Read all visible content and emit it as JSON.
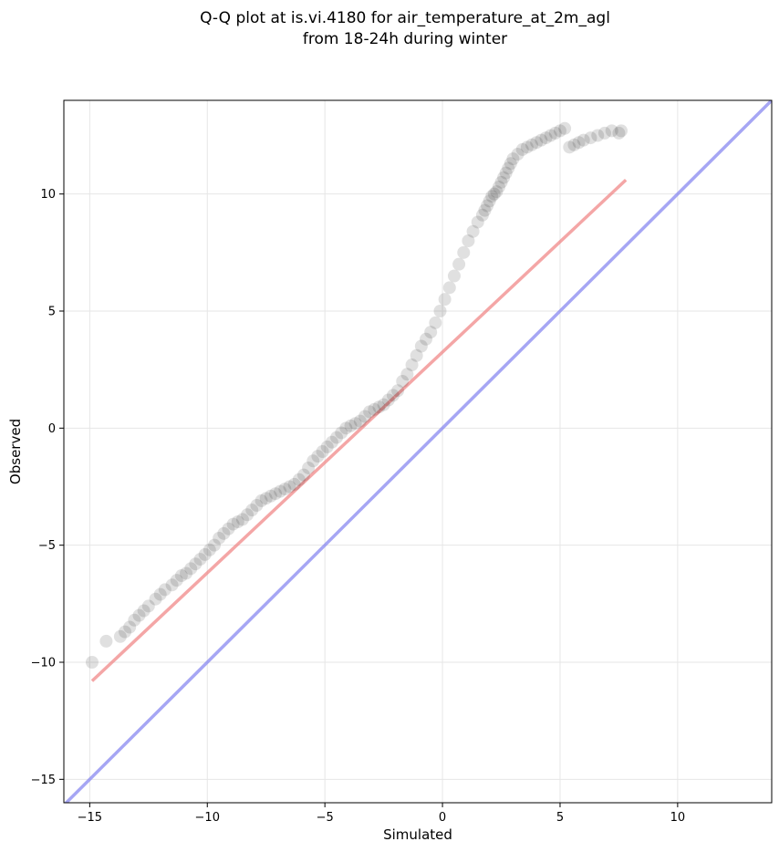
{
  "chart_data": {
    "type": "scatter",
    "title_line1": "Q-Q plot at is.vi.4180 for air_temperature_at_2m_agl",
    "title_line2": "from 18-24h during winter",
    "xlabel": "Simulated",
    "ylabel": "Observed",
    "xlim": [
      -16.1,
      14.0
    ],
    "ylim": [
      -16.0,
      14.0
    ],
    "xticks": [
      -15,
      -10,
      -5,
      0,
      5,
      10
    ],
    "yticks": [
      -15,
      -10,
      -5,
      0,
      5,
      10
    ],
    "xtick_labels": [
      "−15",
      "−10",
      "−5",
      "0",
      "5",
      "10"
    ],
    "ytick_labels": [
      "−15",
      "−10",
      "−5",
      "0",
      "5",
      "10"
    ],
    "grid": true,
    "colors": {
      "points": "#000000",
      "fit_line": "#f08080",
      "identity_line": "#8080f0",
      "grid": "#e6e6e6"
    },
    "fit_line": {
      "x": [
        -14.9,
        7.8
      ],
      "y": [
        -10.8,
        10.6
      ]
    },
    "identity_line": {
      "x": [
        -16.1,
        14.0
      ],
      "y": [
        -16.1,
        14.0
      ]
    },
    "points": {
      "x": [
        -14.9,
        -14.3,
        -13.7,
        -13.5,
        -13.3,
        -13.1,
        -12.9,
        -12.7,
        -12.5,
        -12.2,
        -12.0,
        -11.8,
        -11.5,
        -11.3,
        -11.1,
        -10.9,
        -10.7,
        -10.5,
        -10.3,
        -10.1,
        -9.9,
        -9.7,
        -9.5,
        -9.3,
        -9.1,
        -8.9,
        -8.7,
        -8.5,
        -8.3,
        -8.1,
        -7.9,
        -7.7,
        -7.5,
        -7.3,
        -7.1,
        -6.9,
        -6.7,
        -6.5,
        -6.3,
        -6.1,
        -5.9,
        -5.7,
        -5.5,
        -5.3,
        -5.1,
        -4.9,
        -4.7,
        -4.5,
        -4.3,
        -4.1,
        -3.9,
        -3.7,
        -3.5,
        -3.3,
        -3.1,
        -2.9,
        -2.7,
        -2.5,
        -2.3,
        -2.1,
        -1.9,
        -1.7,
        -1.5,
        -1.3,
        -1.1,
        -0.9,
        -0.7,
        -0.5,
        -0.3,
        -0.1,
        0.1,
        0.3,
        0.5,
        0.7,
        0.9,
        1.1,
        1.3,
        1.5,
        1.7,
        1.8,
        1.9,
        2.0,
        2.1,
        2.2,
        2.3,
        2.4,
        2.5,
        2.6,
        2.7,
        2.8,
        2.9,
        3.0,
        3.2,
        3.4,
        3.6,
        3.8,
        4.0,
        4.2,
        4.4,
        4.6,
        4.8,
        5.0,
        5.2,
        5.4,
        5.6,
        5.8,
        6.0,
        6.3,
        6.6,
        6.9,
        7.2,
        7.5,
        7.6
      ],
      "y": [
        -10.0,
        -9.1,
        -8.9,
        -8.7,
        -8.5,
        -8.2,
        -8.0,
        -7.8,
        -7.6,
        -7.3,
        -7.1,
        -6.9,
        -6.7,
        -6.5,
        -6.3,
        -6.2,
        -6.0,
        -5.8,
        -5.6,
        -5.4,
        -5.2,
        -5.0,
        -4.7,
        -4.5,
        -4.3,
        -4.1,
        -4.0,
        -3.9,
        -3.7,
        -3.5,
        -3.3,
        -3.1,
        -3.0,
        -2.9,
        -2.8,
        -2.7,
        -2.6,
        -2.5,
        -2.4,
        -2.2,
        -2.0,
        -1.7,
        -1.4,
        -1.2,
        -1.0,
        -0.8,
        -0.6,
        -0.4,
        -0.2,
        0.0,
        0.1,
        0.2,
        0.3,
        0.5,
        0.7,
        0.8,
        0.9,
        1.0,
        1.2,
        1.4,
        1.6,
        2.0,
        2.3,
        2.7,
        3.1,
        3.5,
        3.8,
        4.1,
        4.5,
        5.0,
        5.5,
        6.0,
        6.5,
        7.0,
        7.5,
        8.0,
        8.4,
        8.8,
        9.1,
        9.3,
        9.5,
        9.7,
        9.9,
        10.0,
        10.1,
        10.3,
        10.5,
        10.7,
        10.9,
        11.1,
        11.3,
        11.5,
        11.7,
        11.9,
        12.0,
        12.1,
        12.2,
        12.3,
        12.4,
        12.5,
        12.6,
        12.7,
        12.8,
        12.0,
        12.1,
        12.2,
        12.3,
        12.4,
        12.5,
        12.6,
        12.7,
        12.6,
        12.7
      ]
    }
  }
}
